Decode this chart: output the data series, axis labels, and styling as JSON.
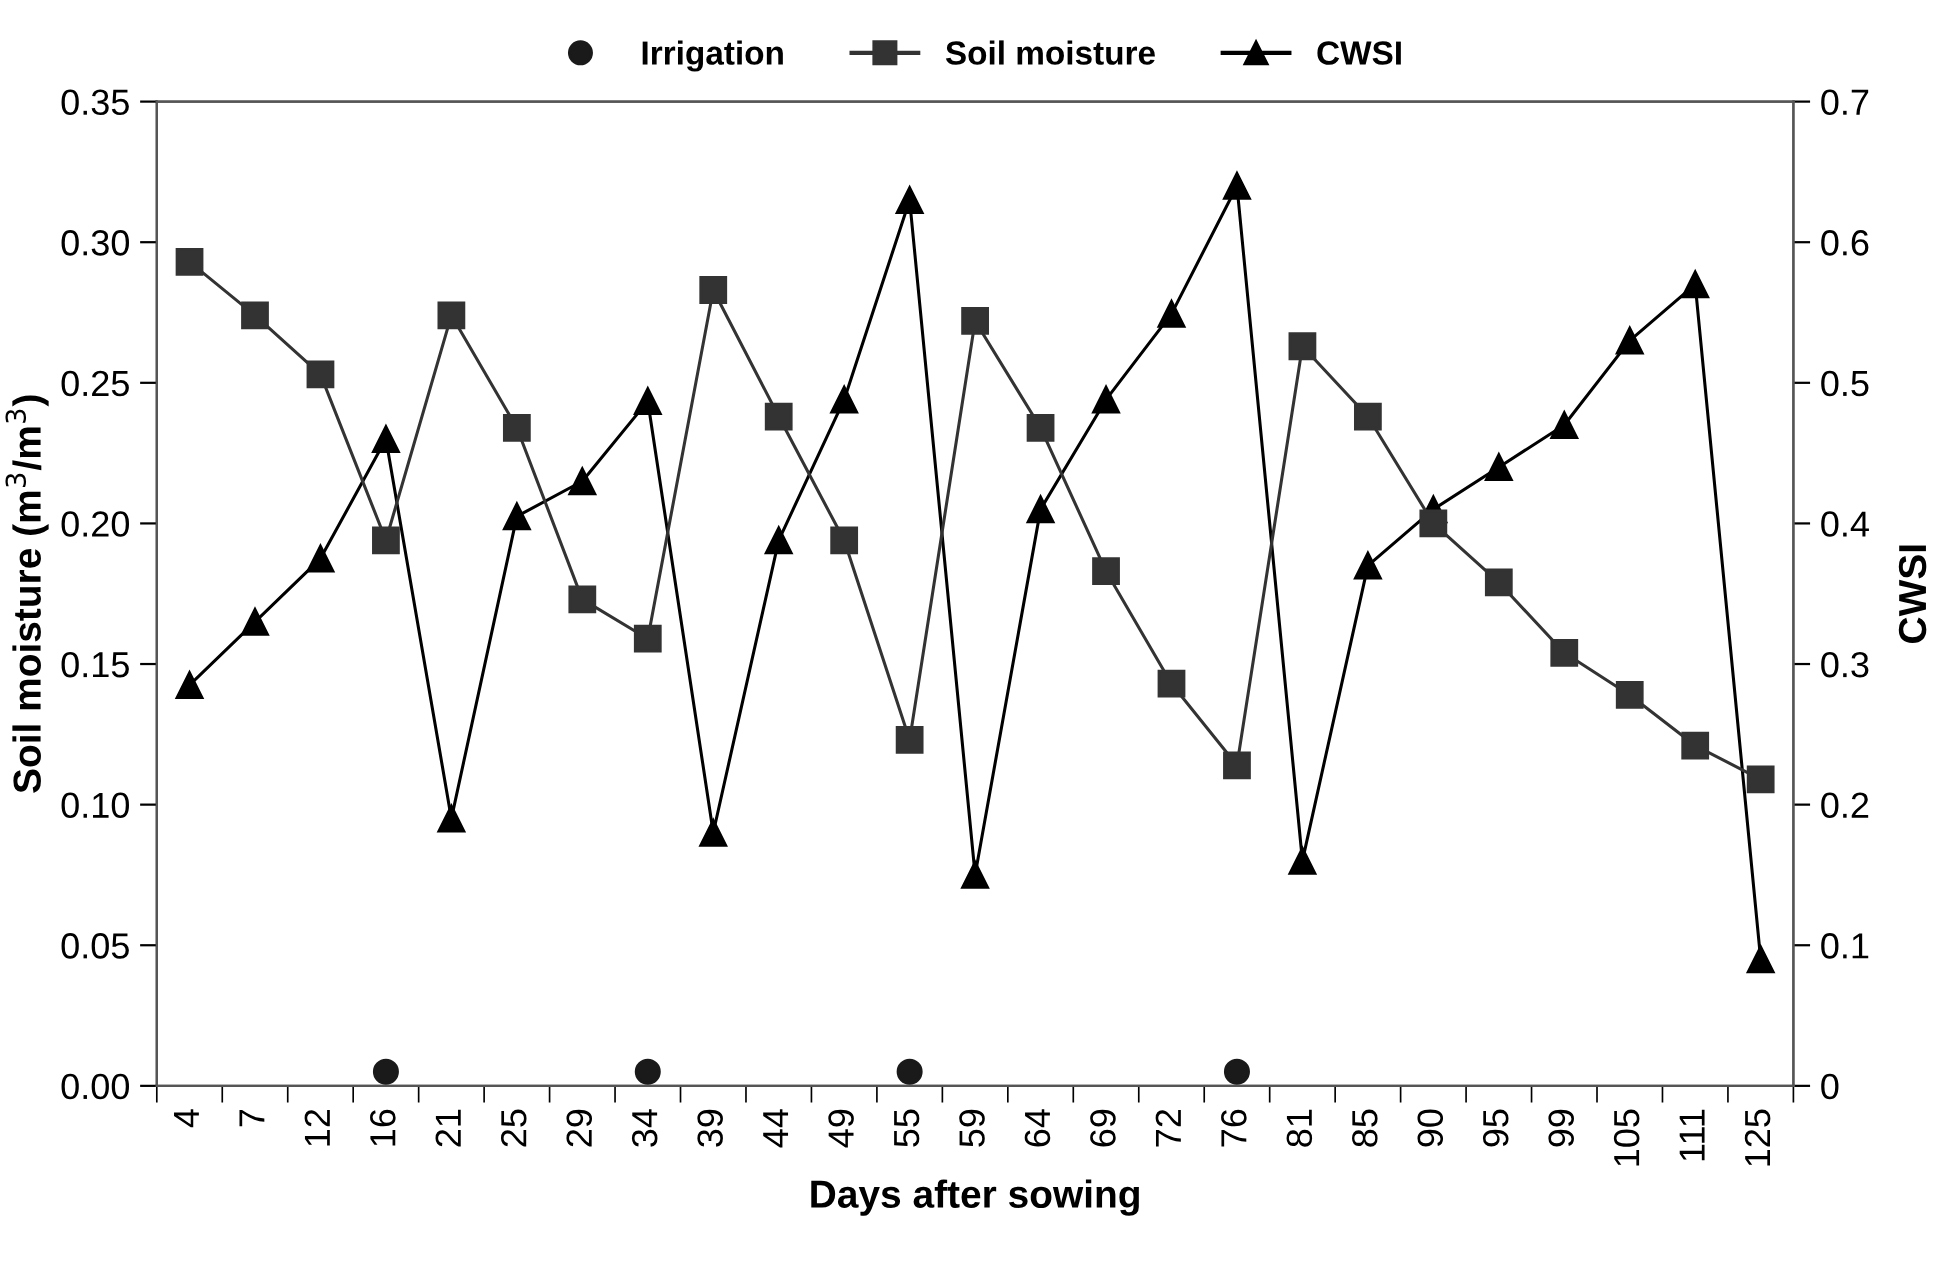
{
  "chart_data": {
    "type": "line",
    "xlabel": "Days after sowing",
    "ylabel": "Soil moisture (m$^{3}$/m$^{3}$)",
    "y2label": "CWSI",
    "categories": [
      "4",
      "7",
      "12",
      "16",
      "21",
      "25",
      "29",
      "34",
      "39",
      "44",
      "49",
      "55",
      "59",
      "64",
      "69",
      "72",
      "76",
      "81",
      "85",
      "90",
      "95",
      "99",
      "105",
      "111",
      "125"
    ],
    "series": [
      {
        "name": "Irrigation",
        "type": "scatter",
        "color": "#1a1a1a",
        "marker": "circle",
        "values": [
          null,
          null,
          null,
          0.005,
          null,
          null,
          null,
          0.005,
          null,
          null,
          null,
          0.005,
          null,
          null,
          null,
          null,
          0.005,
          null,
          null,
          null,
          null,
          null,
          null,
          null,
          null
        ]
      },
      {
        "name": "Soil moisture",
        "color": "#333333",
        "marker": "square",
        "values": [
          0.293,
          0.274,
          0.253,
          0.194,
          0.274,
          0.234,
          0.173,
          0.159,
          0.283,
          0.238,
          0.194,
          0.123,
          0.272,
          0.234,
          0.183,
          0.143,
          0.114,
          0.263,
          0.238,
          0.2,
          0.179,
          0.154,
          0.139,
          0.121,
          0.109
        ]
      },
      {
        "name": "CWSI",
        "axis": "y2",
        "color": "#000000",
        "marker": "triangle",
        "values": [
          0.285,
          0.33,
          0.375,
          0.46,
          0.19,
          0.405,
          0.43,
          0.487,
          0.18,
          0.388,
          0.488,
          0.63,
          0.15,
          0.41,
          0.488,
          0.549,
          0.64,
          0.16,
          0.37,
          0.41,
          0.44,
          0.47,
          0.53,
          0.57,
          0.09
        ]
      }
    ],
    "ylim": [
      0,
      0.35
    ],
    "yticks": [
      {
        "value": 0,
        "label": "0.00"
      },
      {
        "value": 0.05,
        "label": "0.05"
      },
      {
        "value": 0.1,
        "label": "0.10"
      },
      {
        "value": 0.15,
        "label": "0.15"
      },
      {
        "value": 0.2,
        "label": "0.20"
      },
      {
        "value": 0.25,
        "label": "0.25"
      },
      {
        "value": 0.3,
        "label": "0.30"
      },
      {
        "value": 0.35,
        "label": "0.35"
      }
    ],
    "y2lim": [
      0,
      0.7
    ],
    "y2ticks": [
      0,
      0.1,
      0.2,
      0.3,
      0.4,
      0.5,
      0.6,
      0.7
    ],
    "legend": "top",
    "grid": false,
    "line_style": "solid"
  }
}
